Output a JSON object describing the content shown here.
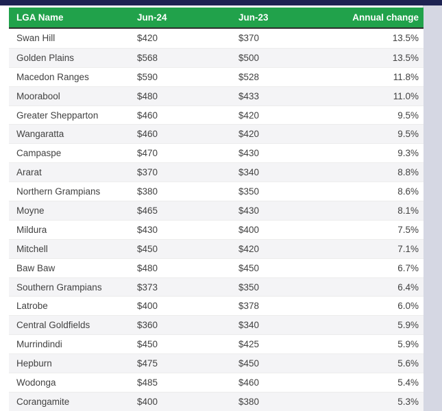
{
  "colors": {
    "top_bar_navy": "#1d2352",
    "header_green": "#21a24b",
    "header_text": "#ffffff",
    "header_bottom_border": "#2d2d2d",
    "row_alt_bg": "#f4f4f6",
    "row_border": "#ececec",
    "body_text": "#414141",
    "right_strip": "#d5d7e3"
  },
  "chart_data": {
    "type": "table",
    "title": "",
    "columns": [
      "LGA Name",
      "Jun-24",
      "Jun-23",
      "Annual change"
    ],
    "rows": [
      {
        "lga": "Swan Hill",
        "jun24": "$420",
        "jun23": "$370",
        "change": "13.5%"
      },
      {
        "lga": "Golden Plains",
        "jun24": "$568",
        "jun23": "$500",
        "change": "13.5%"
      },
      {
        "lga": "Macedon Ranges",
        "jun24": "$590",
        "jun23": "$528",
        "change": "11.8%"
      },
      {
        "lga": "Moorabool",
        "jun24": "$480",
        "jun23": "$433",
        "change": "11.0%"
      },
      {
        "lga": "Greater Shepparton",
        "jun24": "$460",
        "jun23": "$420",
        "change": "9.5%"
      },
      {
        "lga": "Wangaratta",
        "jun24": "$460",
        "jun23": "$420",
        "change": "9.5%"
      },
      {
        "lga": "Campaspe",
        "jun24": "$470",
        "jun23": "$430",
        "change": "9.3%"
      },
      {
        "lga": "Ararat",
        "jun24": "$370",
        "jun23": "$340",
        "change": "8.8%"
      },
      {
        "lga": "Northern Grampians",
        "jun24": "$380",
        "jun23": "$350",
        "change": "8.6%"
      },
      {
        "lga": "Moyne",
        "jun24": "$465",
        "jun23": "$430",
        "change": "8.1%"
      },
      {
        "lga": "Mildura",
        "jun24": "$430",
        "jun23": "$400",
        "change": "7.5%"
      },
      {
        "lga": "Mitchell",
        "jun24": "$450",
        "jun23": "$420",
        "change": "7.1%"
      },
      {
        "lga": "Baw Baw",
        "jun24": "$480",
        "jun23": "$450",
        "change": "6.7%"
      },
      {
        "lga": "Southern Grampians",
        "jun24": "$373",
        "jun23": "$350",
        "change": "6.4%"
      },
      {
        "lga": "Latrobe",
        "jun24": "$400",
        "jun23": "$378",
        "change": "6.0%"
      },
      {
        "lga": "Central Goldfields",
        "jun24": "$360",
        "jun23": "$340",
        "change": "5.9%"
      },
      {
        "lga": "Murrindindi",
        "jun24": "$450",
        "jun23": "$425",
        "change": "5.9%"
      },
      {
        "lga": "Hepburn",
        "jun24": "$475",
        "jun23": "$450",
        "change": "5.6%"
      },
      {
        "lga": "Wodonga",
        "jun24": "$485",
        "jun23": "$460",
        "change": "5.4%"
      },
      {
        "lga": "Corangamite",
        "jun24": "$400",
        "jun23": "$380",
        "change": "5.3%"
      }
    ]
  }
}
